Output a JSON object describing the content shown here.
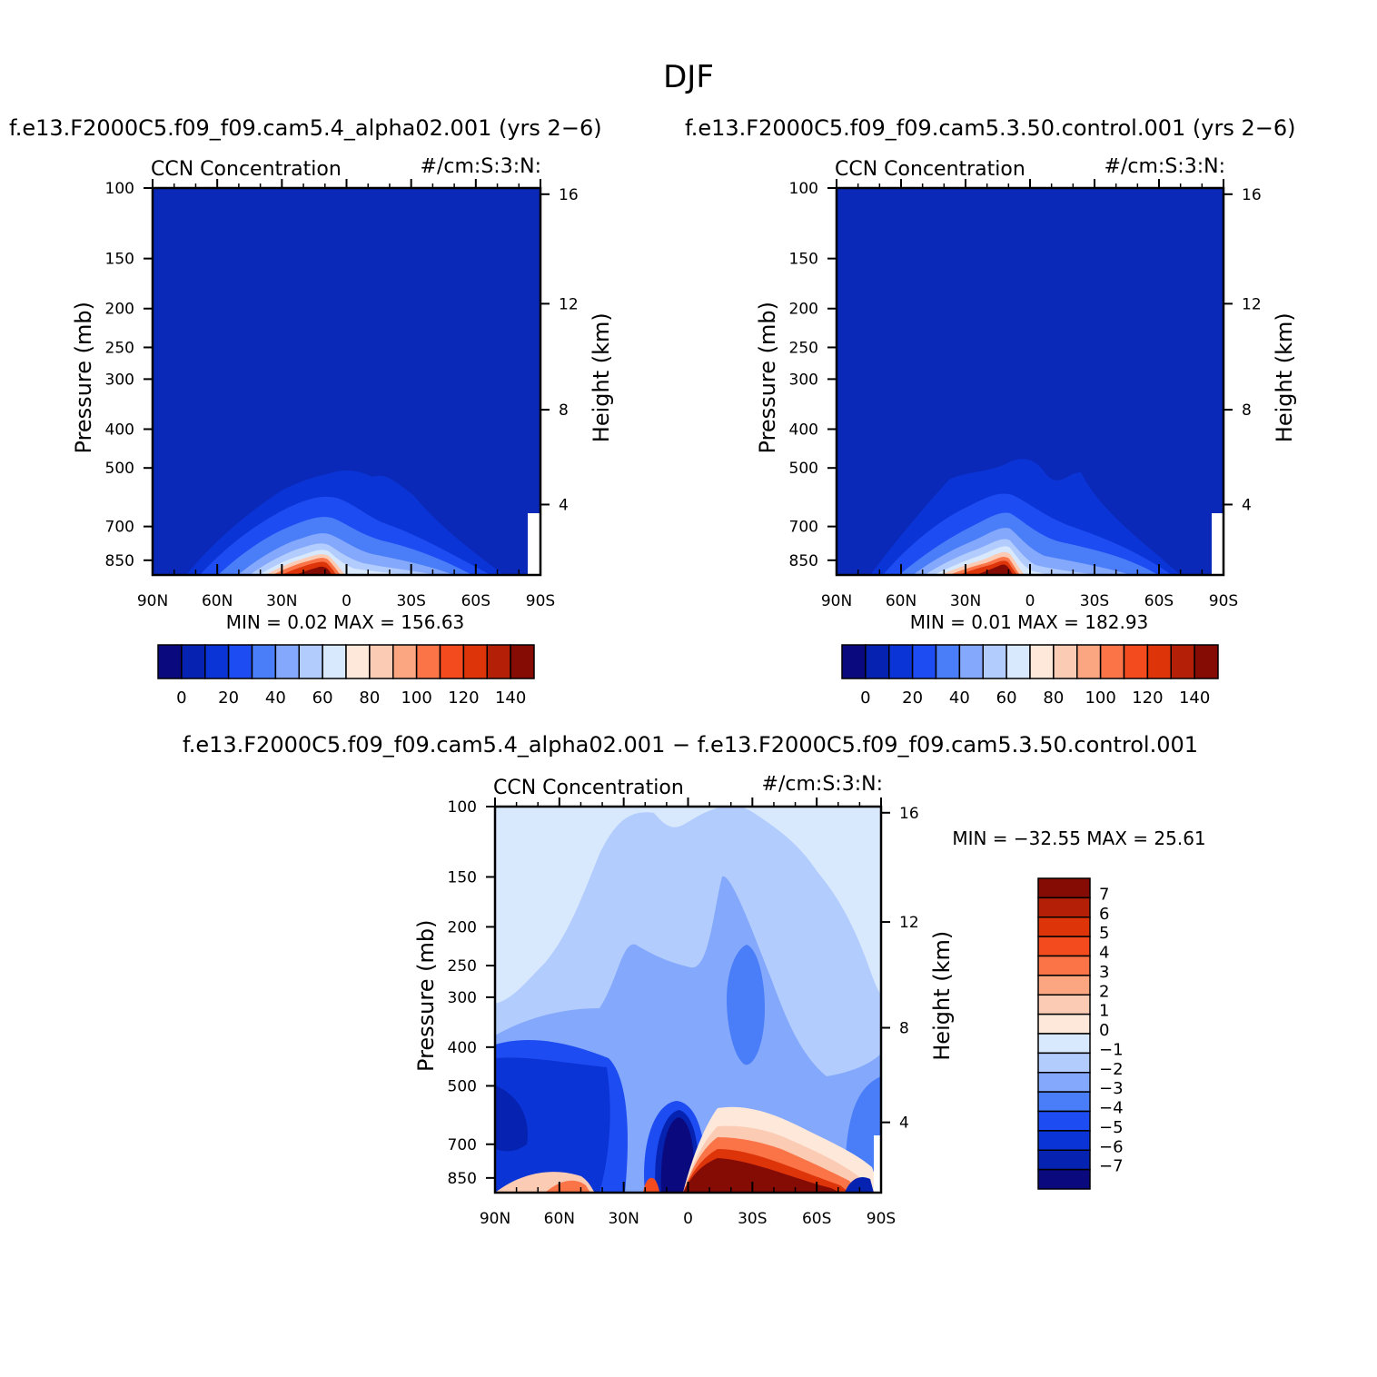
{
  "title": "DJF",
  "panels": {
    "left": {
      "header": "f.e13.F2000C5.f09_f09.cam5.4_alpha02.001 (yrs 2−6)",
      "left_string": "CCN Concentration",
      "right_string": "#/cm:S:3:N:",
      "stats": "MIN = 0.02   MAX = 156.63"
    },
    "right": {
      "header": "f.e13.F2000C5.f09_f09.cam5.3.50.control.001 (yrs 2−6)",
      "left_string": "CCN Concentration",
      "right_string": "#/cm:S:3:N:",
      "stats": "MIN = 0.01   MAX = 182.93"
    },
    "diff": {
      "header": "f.e13.F2000C5.f09_f09.cam5.4_alpha02.001 − f.e13.F2000C5.f09_f09.cam5.3.50.control.001",
      "left_string": "CCN Concentration",
      "right_string": "#/cm:S:3:N:",
      "stats": "MIN = −32.55   MAX = 25.61"
    }
  },
  "colors": {
    "field_palette": [
      "#0a0a7e",
      "#0622b0",
      "#0b34d6",
      "#1d4cf2",
      "#4a7ef8",
      "#84a8fb",
      "#b2ccfd",
      "#d8e8fd",
      "#fde8da",
      "#fccbb4",
      "#fba581",
      "#fa7447",
      "#f34b1e",
      "#dd340a",
      "#b31f07",
      "#850b05"
    ],
    "background_field": "#0b29b8",
    "diff_palette": [
      "#0a0a7e",
      "#0622b0",
      "#0b34d6",
      "#1d4cf2",
      "#4a7ef8",
      "#84a8fb",
      "#b2ccfd",
      "#d8e8fd",
      "#fde8da",
      "#fccbb4",
      "#fba581",
      "#fa7447",
      "#f34b1e",
      "#dd340a",
      "#b31f07",
      "#850b05"
    ]
  },
  "chart_data": [
    {
      "type": "heatmap",
      "panel": "left",
      "title": "CCN Concentration",
      "units": "#/cm:S:3:N:",
      "xlabel": "",
      "ylabel": "Pressure (mb)",
      "ylabel_right": "Height (km)",
      "x_ticks": [
        "90N",
        "60N",
        "30N",
        "0",
        "30S",
        "60S",
        "90S"
      ],
      "y_ticks": [
        "100",
        "150",
        "200",
        "250",
        "300",
        "400",
        "500",
        "700",
        "850"
      ],
      "y_ticks_right": [
        "16",
        "12",
        "8",
        "4"
      ],
      "colorbar_labels": [
        "0",
        "20",
        "40",
        "60",
        "80",
        "100",
        "120",
        "140"
      ],
      "colorbar_levels": [
        -10,
        0,
        10,
        20,
        30,
        40,
        50,
        60,
        70,
        80,
        90,
        100,
        110,
        120,
        130,
        140,
        150
      ],
      "min": 0.02,
      "max": 156.63
    },
    {
      "type": "heatmap",
      "panel": "right",
      "title": "CCN Concentration",
      "units": "#/cm:S:3:N:",
      "ylabel": "Pressure (mb)",
      "ylabel_right": "Height (km)",
      "x_ticks": [
        "90N",
        "60N",
        "30N",
        "0",
        "30S",
        "60S",
        "90S"
      ],
      "y_ticks": [
        "100",
        "150",
        "200",
        "250",
        "300",
        "400",
        "500",
        "700",
        "850"
      ],
      "y_ticks_right": [
        "16",
        "12",
        "8",
        "4"
      ],
      "colorbar_labels": [
        "0",
        "20",
        "40",
        "60",
        "80",
        "100",
        "120",
        "140"
      ],
      "min": 0.01,
      "max": 182.93
    },
    {
      "type": "heatmap",
      "panel": "diff",
      "title": "CCN Concentration",
      "units": "#/cm:S:3:N:",
      "ylabel": "Pressure (mb)",
      "ylabel_right": "Height (km)",
      "x_ticks": [
        "90N",
        "60N",
        "30N",
        "0",
        "30S",
        "60S",
        "90S"
      ],
      "y_ticks": [
        "100",
        "150",
        "200",
        "250",
        "300",
        "400",
        "500",
        "700",
        "850"
      ],
      "y_ticks_right": [
        "16",
        "12",
        "8",
        "4"
      ],
      "colorbar_labels": [
        "7",
        "6",
        "5",
        "4",
        "3",
        "2",
        "1",
        "0",
        "−1",
        "−2",
        "−3",
        "−4",
        "−5",
        "−6",
        "−7"
      ],
      "min": -32.55,
      "max": 25.61
    }
  ]
}
